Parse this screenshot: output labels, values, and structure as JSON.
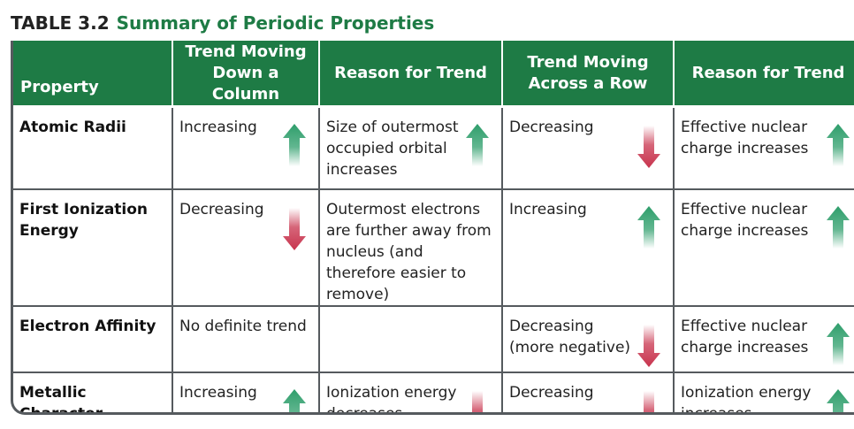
{
  "title": {
    "number": "TABLE 3.2",
    "text": "Summary of Periodic Properties"
  },
  "headers": [
    "Property",
    "Trend Moving Down a Column",
    "Reason for Trend",
    "Trend Moving Across a Row",
    "Reason for Trend"
  ],
  "rows": [
    {
      "property": "Atomic Radii",
      "down_column": {
        "text": "Increasing",
        "arrow": "up-arrow-icon"
      },
      "down_reason": {
        "text": "Size of outermost occupied orbital increases",
        "arrow": "up-arrow-icon"
      },
      "across_row": {
        "text": "Decreasing",
        "arrow": "down-arrow-icon"
      },
      "across_reason": {
        "text": "Effective nuclear charge increases",
        "arrow": "up-arrow-icon"
      }
    },
    {
      "property": "First Ionization Energy",
      "down_column": {
        "text": "Decreasing",
        "arrow": "down-arrow-icon"
      },
      "down_reason": {
        "text": "Outermost electrons are further away from nucleus (and therefore easier to remove)",
        "arrow": ""
      },
      "across_row": {
        "text": "Increasing",
        "arrow": "up-arrow-icon"
      },
      "across_reason": {
        "text": "Effective nuclear charge increases",
        "arrow": "up-arrow-icon"
      }
    },
    {
      "property": "Electron Affinity",
      "down_column": {
        "text": "No definite trend",
        "arrow": ""
      },
      "down_reason": {
        "text": "",
        "arrow": ""
      },
      "across_row": {
        "text": "Decreasing (more negative)",
        "arrow": "down-arrow-icon"
      },
      "across_reason": {
        "text": "Effective nuclear charge increases",
        "arrow": "up-arrow-icon"
      }
    },
    {
      "property": "Metallic Character",
      "down_column": {
        "text": "Increasing",
        "arrow": "up-arrow-icon"
      },
      "down_reason": {
        "text": "Ionization energy decreases",
        "arrow": "down-arrow-icon"
      },
      "across_row": {
        "text": "Decreasing",
        "arrow": "down-arrow-icon"
      },
      "across_reason": {
        "text": "Ionization energy increases",
        "arrow": "up-arrow-icon"
      }
    }
  ],
  "colors": {
    "header_green": "#1e7b45",
    "up_arrow_green": "#2e9e6b",
    "down_arrow_red": "#c8334d",
    "border_gray": "#555a5e"
  }
}
